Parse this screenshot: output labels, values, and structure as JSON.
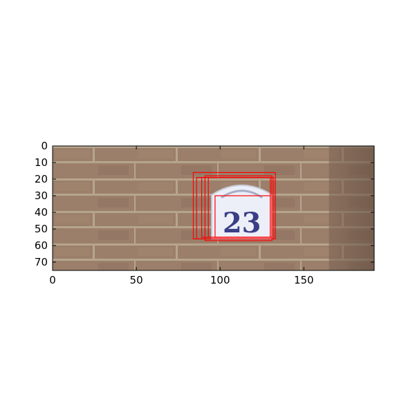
{
  "chart_data": {
    "type": "image_with_boxes",
    "image": {
      "width": 192,
      "height": 75,
      "content": "brick-wall-house-number-plaque",
      "plaque_text": "23",
      "colors": {
        "brick": "#9b7f6b",
        "brick_dark": "#7e6553",
        "mortar": "#b6a58d",
        "plaque": "#eceef8",
        "digits": "#3a3e86"
      }
    },
    "xlim": [
      0,
      192
    ],
    "ylim": [
      75,
      0
    ],
    "x_ticks": [
      {
        "value": 0,
        "label": "0"
      },
      {
        "value": 50,
        "label": "50"
      },
      {
        "value": 100,
        "label": "100"
      },
      {
        "value": 150,
        "label": "150"
      }
    ],
    "y_ticks": [
      {
        "value": 0,
        "label": "0"
      },
      {
        "value": 10,
        "label": "10"
      },
      {
        "value": 20,
        "label": "20"
      },
      {
        "value": 30,
        "label": "30"
      },
      {
        "value": 40,
        "label": "40"
      },
      {
        "value": 50,
        "label": "50"
      },
      {
        "value": 60,
        "label": "60"
      },
      {
        "value": 70,
        "label": "70"
      }
    ],
    "box_color": "#ff0000",
    "boxes": [
      {
        "x0": 84,
        "y0": 16,
        "x1": 133,
        "y1": 56
      },
      {
        "x0": 86,
        "y0": 19,
        "x1": 132,
        "y1": 56
      },
      {
        "x0": 89,
        "y0": 19,
        "x1": 131,
        "y1": 55
      },
      {
        "x0": 91,
        "y0": 18,
        "x1": 131,
        "y1": 57
      },
      {
        "x0": 93,
        "y0": 19,
        "x1": 130,
        "y1": 55
      },
      {
        "x0": 97,
        "y0": 30,
        "x1": 130,
        "y1": 55
      }
    ],
    "grid": false
  }
}
